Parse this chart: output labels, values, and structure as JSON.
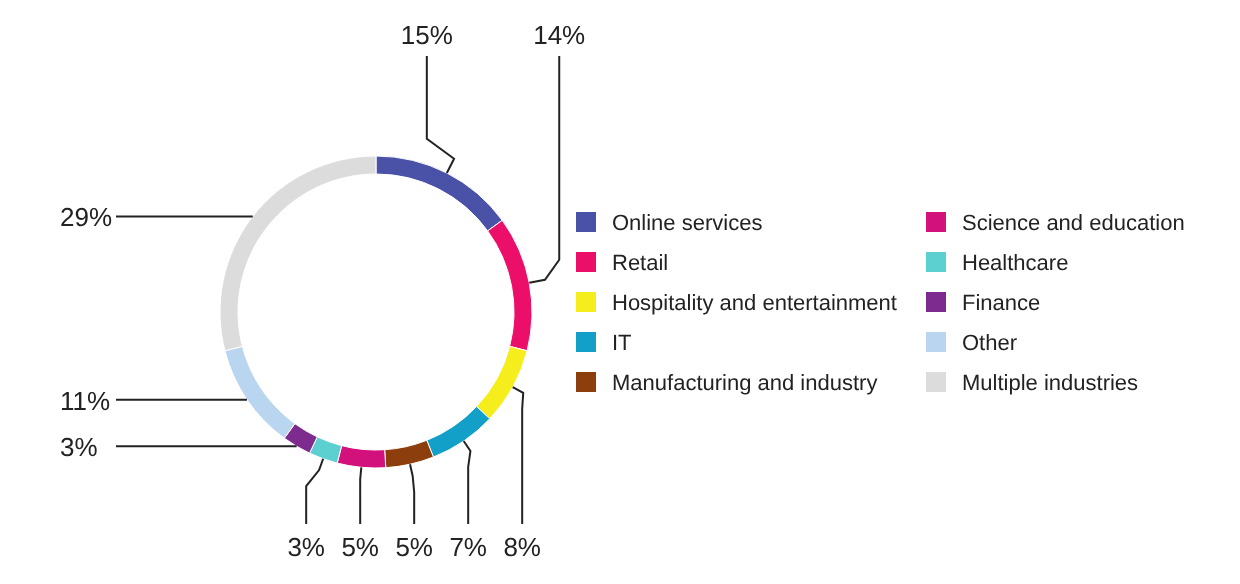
{
  "chart_data": {
    "type": "donut",
    "categories": [
      "Online services",
      "Retail",
      "Hospitality and entertainment",
      "IT",
      "Manufacturing and industry",
      "Science and education",
      "Healthcare",
      "Finance",
      "Other",
      "Multiple industries"
    ],
    "values": [
      15,
      14,
      8,
      7,
      5,
      5,
      3,
      3,
      11,
      29
    ],
    "colors": [
      "#4a52a8",
      "#ec0f6a",
      "#f6ee1c",
      "#12a0c9",
      "#8c3f0c",
      "#d2117c",
      "#5ccfd0",
      "#7d2b8e",
      "#b9d5ef",
      "#dcdcdc"
    ],
    "value_labels": [
      "15%",
      "14%",
      "8%",
      "7%",
      "5%",
      "5%",
      "3%",
      "3%",
      "11%",
      "29%"
    ],
    "legend": "right"
  }
}
